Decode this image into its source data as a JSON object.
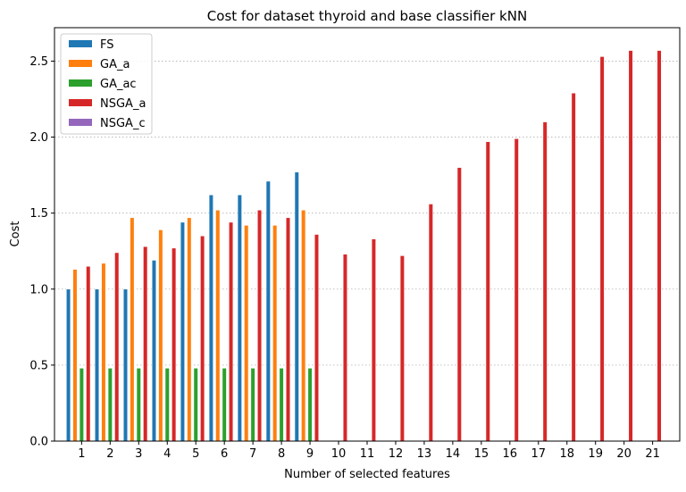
{
  "chart_data": {
    "type": "bar",
    "title": "Cost for dataset thyroid and base classifier kNN",
    "xlabel": "Number of selected features",
    "ylabel": "Cost",
    "categories": [
      "1",
      "2",
      "3",
      "4",
      "5",
      "6",
      "7",
      "8",
      "9",
      "10",
      "11",
      "12",
      "13",
      "14",
      "15",
      "16",
      "17",
      "18",
      "19",
      "20",
      "21"
    ],
    "ylim": [
      0,
      2.72
    ],
    "yticks": [
      "0.0",
      "0.5",
      "1.0",
      "1.5",
      "2.0",
      "2.5"
    ],
    "grid": "horizontal dotted",
    "legend_position": "top-left",
    "series": [
      {
        "name": "FS",
        "color": "#1f77b4",
        "values": [
          1.0,
          1.0,
          1.0,
          1.19,
          1.44,
          1.62,
          1.62,
          1.71,
          1.77,
          null,
          null,
          null,
          null,
          null,
          null,
          null,
          null,
          null,
          null,
          null,
          null
        ]
      },
      {
        "name": "GA_a",
        "color": "#ff7f0e",
        "values": [
          1.13,
          1.17,
          1.47,
          1.39,
          1.47,
          1.52,
          1.42,
          1.42,
          1.52,
          null,
          null,
          null,
          null,
          null,
          null,
          null,
          null,
          null,
          null,
          null,
          null
        ]
      },
      {
        "name": "GA_ac",
        "color": "#2ca02c",
        "values": [
          0.48,
          0.48,
          0.48,
          0.48,
          0.48,
          0.48,
          0.48,
          0.48,
          0.48,
          null,
          null,
          null,
          null,
          null,
          null,
          null,
          null,
          null,
          null,
          null,
          null
        ]
      },
      {
        "name": "NSGA_a",
        "color": "#d62728",
        "values": [
          1.15,
          1.24,
          1.28,
          1.27,
          1.35,
          1.44,
          1.52,
          1.47,
          1.36,
          1.23,
          1.33,
          1.22,
          1.56,
          1.8,
          1.97,
          1.99,
          2.1,
          2.29,
          2.53,
          2.57,
          2.57
        ]
      },
      {
        "name": "NSGA_c",
        "color": "#9467bd",
        "values": [
          null,
          null,
          null,
          null,
          null,
          null,
          null,
          null,
          null,
          null,
          null,
          null,
          null,
          null,
          null,
          null,
          null,
          null,
          null,
          null,
          null
        ]
      }
    ]
  }
}
